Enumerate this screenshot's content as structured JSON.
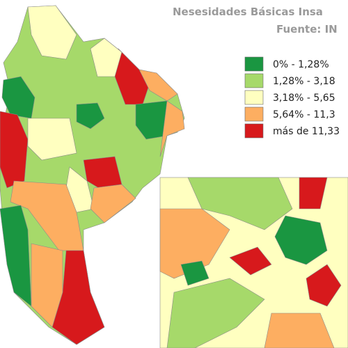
{
  "title": "Nesesidades Básicas Insa",
  "source": "Fuente: IN",
  "legend": {
    "items": [
      {
        "label": "0% - 1,28%",
        "color": "#1a9641"
      },
      {
        "label": "1,28% - 3,18",
        "color": "#a6d96a"
      },
      {
        "label": "3,18% - 5,65",
        "color": "#ffffc0"
      },
      {
        "label": "5,64% - 11,3",
        "color": "#fdae61"
      },
      {
        "label": "más de 11,33",
        "color": "#d7191c"
      }
    ]
  }
}
